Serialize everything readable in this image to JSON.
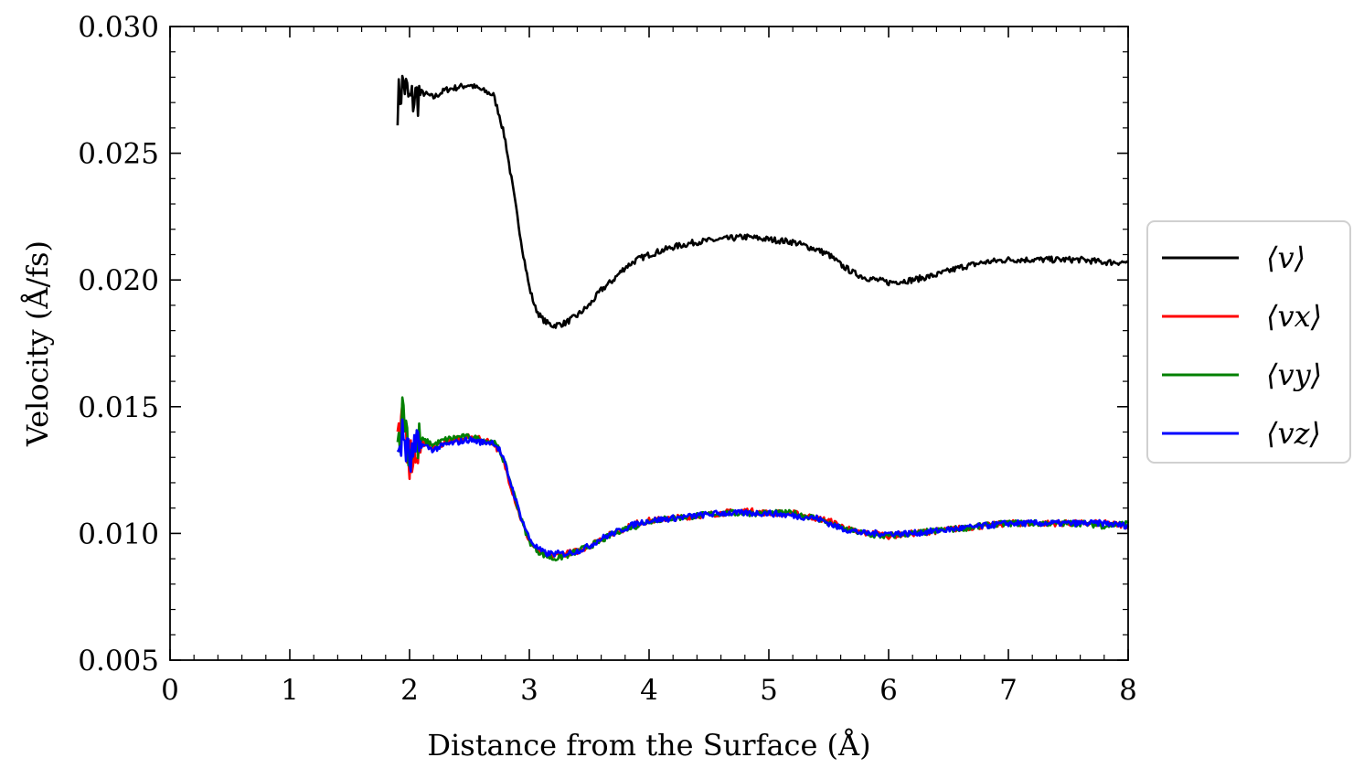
{
  "chart_data": {
    "type": "line",
    "xlabel": "Distance from the Surface (Å)",
    "ylabel": "Velocity (Å/fs)",
    "xlim": [
      0,
      8
    ],
    "ylim": [
      0.005,
      0.03
    ],
    "x_ticks": [
      "0",
      "1",
      "2",
      "3",
      "4",
      "5",
      "6",
      "7",
      "8"
    ],
    "y_ticks": [
      "0.005",
      "0.010",
      "0.015",
      "0.020",
      "0.025",
      "0.030"
    ],
    "grid": false,
    "legend_position": "right-outside",
    "series": [
      {
        "name": "⟨v⟩",
        "color": "#000000",
        "x": [
          1.9,
          1.95,
          2.0,
          2.1,
          2.2,
          2.3,
          2.4,
          2.5,
          2.6,
          2.7,
          2.75,
          2.8,
          2.85,
          2.9,
          2.95,
          3.0,
          3.05,
          3.1,
          3.15,
          3.2,
          3.3,
          3.4,
          3.5,
          3.6,
          3.7,
          3.8,
          3.9,
          4.0,
          4.2,
          4.4,
          4.6,
          4.8,
          5.0,
          5.2,
          5.4,
          5.5,
          5.6,
          5.7,
          5.8,
          5.9,
          6.0,
          6.2,
          6.4,
          6.6,
          6.8,
          7.0,
          7.2,
          7.4,
          7.6,
          7.8,
          8.0
        ],
        "values": [
          0.027,
          0.0278,
          0.027,
          0.0274,
          0.0272,
          0.0275,
          0.0276,
          0.0277,
          0.0275,
          0.0273,
          0.0265,
          0.0255,
          0.024,
          0.0225,
          0.021,
          0.0197,
          0.0189,
          0.0185,
          0.0183,
          0.0182,
          0.0183,
          0.0186,
          0.019,
          0.0196,
          0.02,
          0.0205,
          0.0208,
          0.021,
          0.0213,
          0.0215,
          0.0216,
          0.0217,
          0.0216,
          0.0215,
          0.0212,
          0.021,
          0.0206,
          0.0203,
          0.0201,
          0.02,
          0.0199,
          0.02,
          0.0202,
          0.0205,
          0.0207,
          0.0208,
          0.0208,
          0.0208,
          0.0208,
          0.0207,
          0.0207
        ]
      },
      {
        "name": "⟨vx⟩",
        "color": "#ff0000",
        "x": [
          1.9,
          1.95,
          2.0,
          2.1,
          2.2,
          2.3,
          2.4,
          2.5,
          2.6,
          2.7,
          2.75,
          2.8,
          2.85,
          2.9,
          2.95,
          3.0,
          3.05,
          3.1,
          3.15,
          3.2,
          3.3,
          3.4,
          3.5,
          3.6,
          3.7,
          3.8,
          3.9,
          4.0,
          4.2,
          4.4,
          4.6,
          4.8,
          5.0,
          5.2,
          5.4,
          5.5,
          5.6,
          5.7,
          5.8,
          5.9,
          6.0,
          6.2,
          6.4,
          6.6,
          6.8,
          7.0,
          7.2,
          7.4,
          7.6,
          7.8,
          8.0
        ],
        "values": [
          0.0133,
          0.0145,
          0.013,
          0.0136,
          0.0134,
          0.0136,
          0.0137,
          0.0138,
          0.0137,
          0.0136,
          0.0132,
          0.0126,
          0.0118,
          0.011,
          0.0103,
          0.0097,
          0.0094,
          0.0092,
          0.0091,
          0.0091,
          0.0092,
          0.0093,
          0.0095,
          0.0098,
          0.01,
          0.0102,
          0.0104,
          0.0105,
          0.0106,
          0.0107,
          0.0108,
          0.0109,
          0.0108,
          0.0108,
          0.0106,
          0.0105,
          0.0103,
          0.0101,
          0.01,
          0.01,
          0.0099,
          0.01,
          0.0101,
          0.0102,
          0.0103,
          0.0104,
          0.0104,
          0.0104,
          0.0104,
          0.0104,
          0.0103
        ]
      },
      {
        "name": "⟨vy⟩",
        "color": "#008000",
        "x": [
          1.9,
          1.95,
          2.0,
          2.1,
          2.2,
          2.3,
          2.4,
          2.5,
          2.6,
          2.7,
          2.75,
          2.8,
          2.85,
          2.9,
          2.95,
          3.0,
          3.05,
          3.1,
          3.15,
          3.2,
          3.3,
          3.4,
          3.5,
          3.6,
          3.7,
          3.8,
          3.9,
          4.0,
          4.2,
          4.4,
          4.6,
          4.8,
          5.0,
          5.2,
          5.4,
          5.5,
          5.6,
          5.7,
          5.8,
          5.9,
          6.0,
          6.2,
          6.4,
          6.6,
          6.8,
          7.0,
          7.2,
          7.4,
          7.6,
          7.8,
          8.0
        ],
        "values": [
          0.0135,
          0.015,
          0.0132,
          0.0137,
          0.0135,
          0.0137,
          0.0138,
          0.0138,
          0.0137,
          0.0136,
          0.0133,
          0.0127,
          0.0119,
          0.0111,
          0.0103,
          0.0097,
          0.0094,
          0.0092,
          0.0091,
          0.009,
          0.0091,
          0.0093,
          0.0095,
          0.0097,
          0.01,
          0.0102,
          0.0103,
          0.0105,
          0.0106,
          0.0107,
          0.0108,
          0.0108,
          0.0108,
          0.0108,
          0.0106,
          0.0104,
          0.0102,
          0.0101,
          0.01,
          0.0099,
          0.0099,
          0.01,
          0.0101,
          0.0102,
          0.0103,
          0.0104,
          0.0104,
          0.0104,
          0.0104,
          0.0103,
          0.0104
        ]
      },
      {
        "name": "⟨vz⟩",
        "color": "#0000ff",
        "x": [
          1.9,
          1.95,
          2.0,
          2.1,
          2.2,
          2.3,
          2.4,
          2.5,
          2.6,
          2.7,
          2.75,
          2.8,
          2.85,
          2.9,
          2.95,
          3.0,
          3.05,
          3.1,
          3.15,
          3.2,
          3.3,
          3.4,
          3.5,
          3.6,
          3.7,
          3.8,
          3.9,
          4.0,
          4.2,
          4.4,
          4.6,
          4.8,
          5.0,
          5.2,
          5.4,
          5.5,
          5.6,
          5.7,
          5.8,
          5.9,
          6.0,
          6.2,
          6.4,
          6.6,
          6.8,
          7.0,
          7.2,
          7.4,
          7.6,
          7.8,
          8.0
        ],
        "values": [
          0.0134,
          0.0138,
          0.0128,
          0.0135,
          0.0133,
          0.0135,
          0.0136,
          0.0137,
          0.0136,
          0.0136,
          0.0133,
          0.0127,
          0.0119,
          0.0111,
          0.0104,
          0.0098,
          0.0095,
          0.0093,
          0.0092,
          0.0092,
          0.0092,
          0.0093,
          0.0095,
          0.0098,
          0.01,
          0.0102,
          0.0104,
          0.0105,
          0.0106,
          0.0107,
          0.0108,
          0.0108,
          0.0108,
          0.0107,
          0.0106,
          0.0104,
          0.0102,
          0.0101,
          0.01,
          0.01,
          0.01,
          0.01,
          0.0101,
          0.0102,
          0.0103,
          0.0104,
          0.0104,
          0.0104,
          0.0104,
          0.0104,
          0.0103
        ]
      }
    ]
  }
}
